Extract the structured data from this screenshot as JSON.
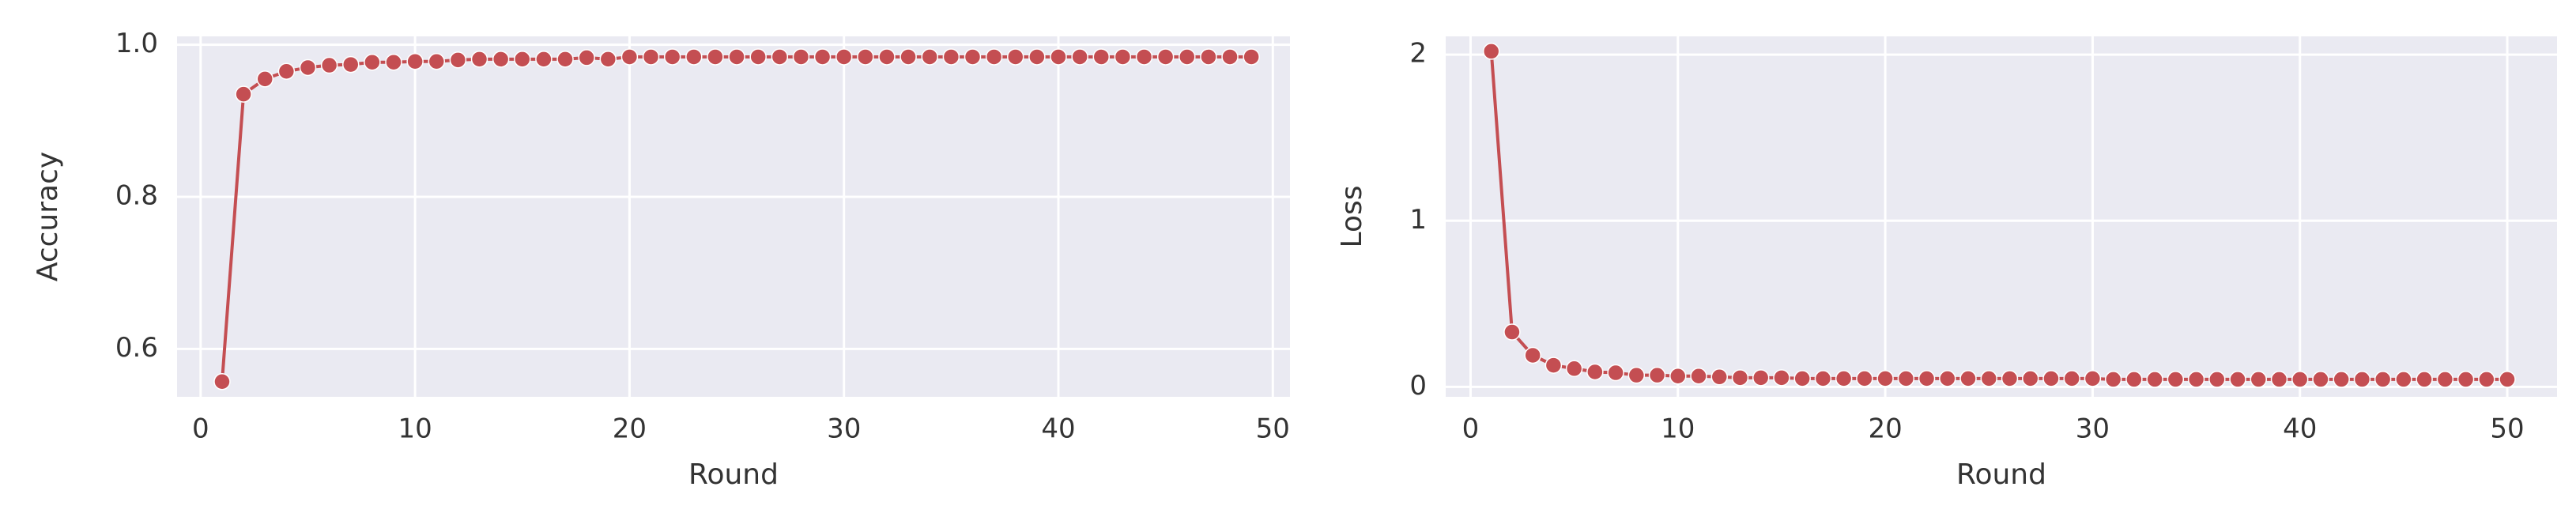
{
  "chart_data": [
    {
      "type": "line",
      "xlabel": "Round",
      "ylabel": "Accuracy",
      "x": [
        1,
        2,
        3,
        4,
        5,
        6,
        7,
        8,
        9,
        10,
        11,
        12,
        13,
        14,
        15,
        16,
        17,
        18,
        19,
        20,
        21,
        22,
        23,
        24,
        25,
        26,
        27,
        28,
        29,
        30,
        31,
        32,
        33,
        34,
        35,
        36,
        37,
        38,
        39,
        40,
        41,
        42,
        43,
        44,
        45,
        46,
        47,
        48,
        49
      ],
      "series": [
        {
          "color": "#c44e52",
          "values": [
            0.557,
            0.935,
            0.955,
            0.965,
            0.97,
            0.973,
            0.974,
            0.977,
            0.977,
            0.978,
            0.978,
            0.98,
            0.981,
            0.981,
            0.981,
            0.981,
            0.981,
            0.983,
            0.981,
            0.984,
            0.984,
            0.984,
            0.984,
            0.984,
            0.984,
            0.984,
            0.984,
            0.984,
            0.984,
            0.984,
            0.984,
            0.984,
            0.984,
            0.984,
            0.984,
            0.984,
            0.984,
            0.984,
            0.984,
            0.984,
            0.984,
            0.984,
            0.984,
            0.984,
            0.984,
            0.984,
            0.984,
            0.984,
            0.984
          ]
        }
      ],
      "xlim": [
        -1.1,
        50.8
      ],
      "ylim": [
        0.537,
        1.011
      ],
      "xticks": [
        0,
        10,
        20,
        30,
        40,
        50
      ],
      "yticks": [
        0.6,
        0.8,
        {
          "value": 1,
          "label": "1.0"
        }
      ],
      "grid": true
    },
    {
      "type": "line",
      "xlabel": "Round",
      "ylabel": "Loss",
      "x": [
        1,
        2,
        3,
        4,
        5,
        6,
        7,
        8,
        9,
        10,
        11,
        12,
        13,
        14,
        15,
        16,
        17,
        18,
        19,
        20,
        21,
        22,
        23,
        24,
        25,
        26,
        27,
        28,
        29,
        30,
        31,
        32,
        33,
        34,
        35,
        36,
        37,
        38,
        39,
        40,
        41,
        42,
        43,
        44,
        45,
        46,
        47,
        48,
        49,
        50
      ],
      "series": [
        {
          "color": "#c44e52",
          "values": [
            2.02,
            0.33,
            0.19,
            0.13,
            0.11,
            0.09,
            0.085,
            0.07,
            0.07,
            0.065,
            0.065,
            0.06,
            0.055,
            0.055,
            0.055,
            0.05,
            0.05,
            0.05,
            0.05,
            0.05,
            0.05,
            0.05,
            0.05,
            0.05,
            0.05,
            0.05,
            0.05,
            0.05,
            0.05,
            0.05,
            0.045,
            0.045,
            0.045,
            0.045,
            0.045,
            0.045,
            0.045,
            0.045,
            0.045,
            0.045,
            0.045,
            0.045,
            0.045,
            0.045,
            0.045,
            0.045,
            0.045,
            0.045,
            0.045,
            0.045
          ]
        }
      ],
      "xlim": [
        -1.2,
        52.4
      ],
      "ylim": [
        -0.06,
        2.11
      ],
      "xticks": [
        0,
        10,
        20,
        30,
        40,
        50
      ],
      "yticks": [
        0,
        1,
        2
      ],
      "grid": true
    }
  ]
}
